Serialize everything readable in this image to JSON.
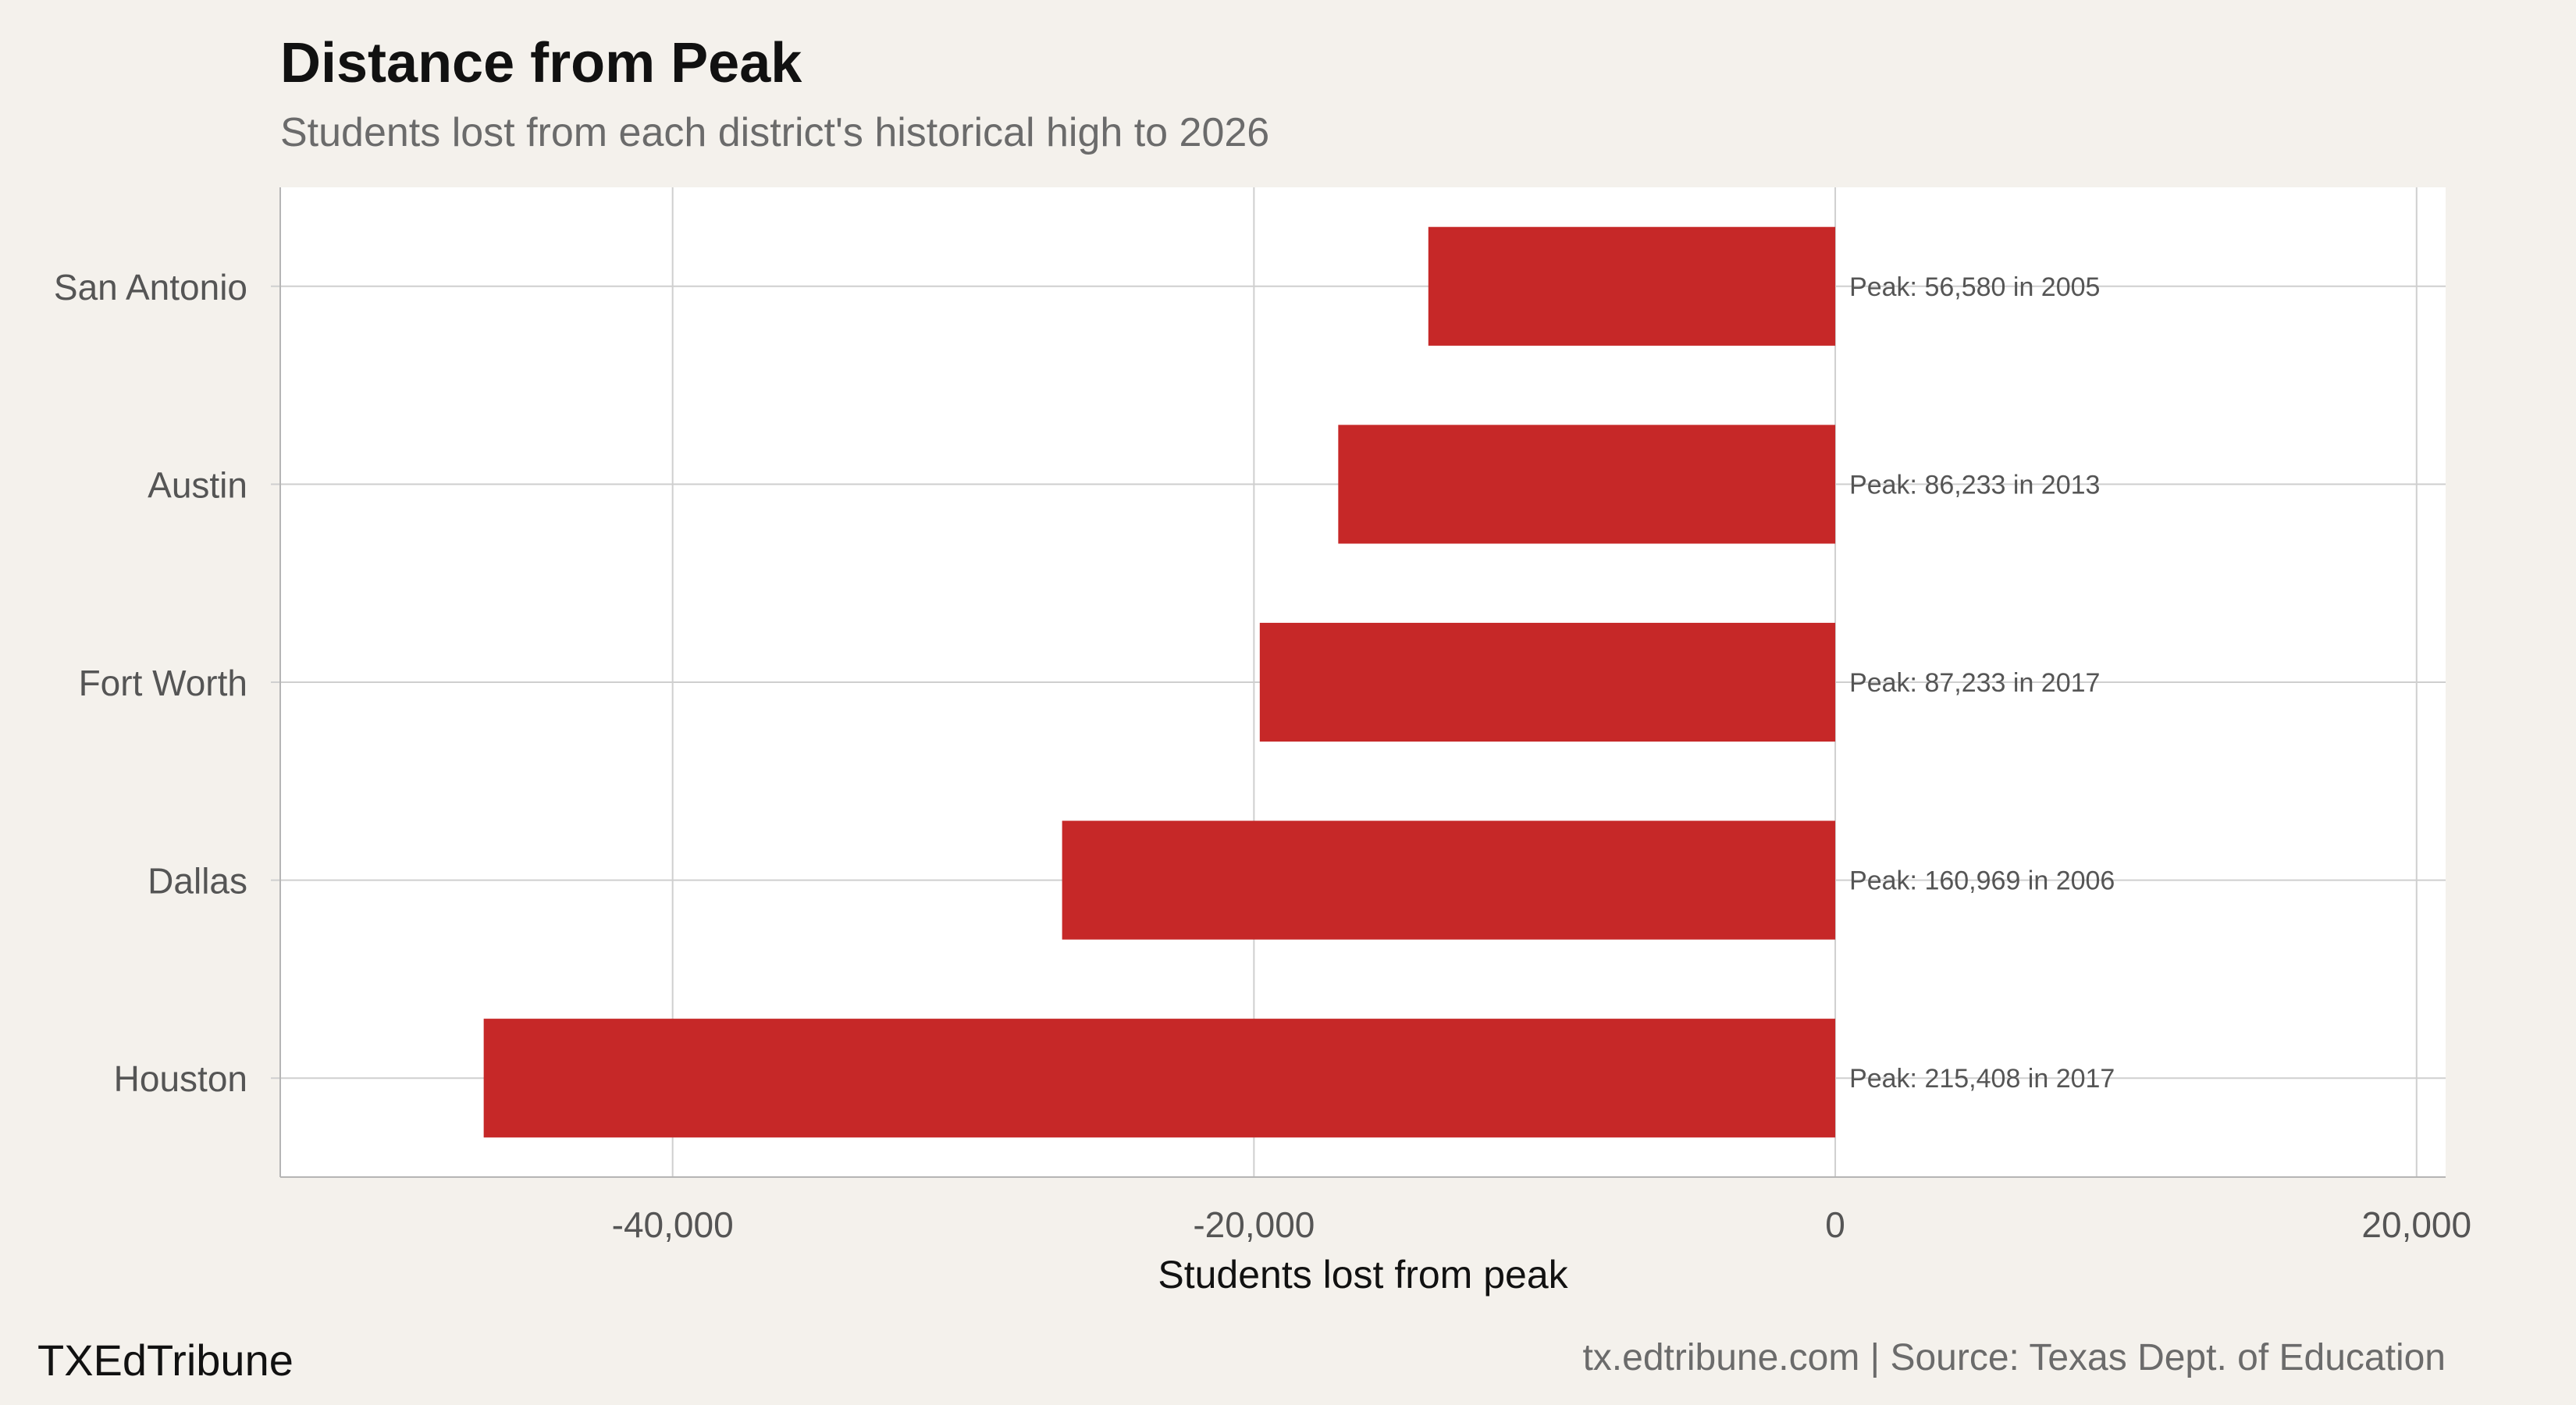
{
  "chart_data": {
    "type": "bar",
    "orientation": "horizontal",
    "title": "Distance from Peak",
    "subtitle": "Students lost from each district's historical high to 2026",
    "xlabel": "Students lost from peak",
    "ylabel": "",
    "xlim": [
      -53500,
      21000
    ],
    "xticks": [
      -40000,
      -20000,
      0,
      20000
    ],
    "xtick_labels": [
      "-40,000",
      "-20,000",
      "0",
      "20,000"
    ],
    "grid": true,
    "categories": [
      "San Antonio",
      "Austin",
      "Fort Worth",
      "Dallas",
      "Houston"
    ],
    "values": [
      -14000,
      -17100,
      -19800,
      -26600,
      -46500
    ],
    "peak_labels": [
      "Peak: 56,580 in 2005",
      "Peak: 86,233 in 2013",
      "Peak: 87,233 in 2017",
      "Peak: 160,969 in 2006",
      "Peak: 215,408 in 2017"
    ],
    "bar_color": "#c62828"
  },
  "footer": {
    "brand": "TXEdTribune",
    "credit": "tx.edtribune.com | Source: Texas Dept. of Education"
  }
}
